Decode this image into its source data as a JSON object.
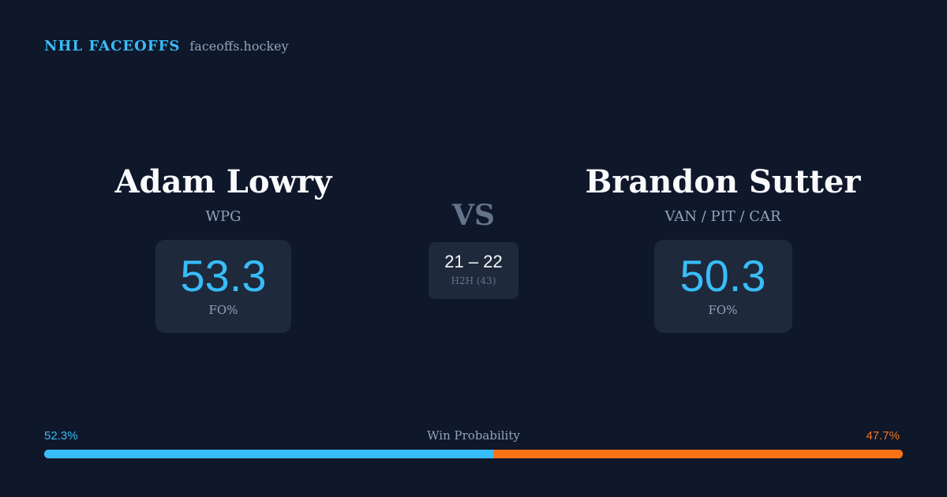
{
  "header": {
    "brand": "NHL FACEOFFS",
    "domain": "faceoffs.hockey"
  },
  "player_left": {
    "name": "Adam Lowry",
    "team": "WPG",
    "fo_value": "53.3",
    "fo_label": "FO%"
  },
  "player_right": {
    "name": "Brandon Sutter",
    "team": "VAN / PIT / CAR",
    "fo_value": "50.3",
    "fo_label": "FO%"
  },
  "matchup": {
    "vs_label": "VS",
    "h2h_score": "21 – 22",
    "h2h_label": "H2H (43)"
  },
  "win_probability": {
    "title": "Win Probability",
    "left_label": "52.3%",
    "right_label": "47.7%",
    "left_value": 52.3,
    "right_value": 47.7,
    "left_color": "#38bdf8",
    "right_color": "#f97316"
  },
  "colors": {
    "background": "#0f172a",
    "card": "#1e293b",
    "accent": "#38bdf8",
    "secondary_accent": "#f97316"
  }
}
